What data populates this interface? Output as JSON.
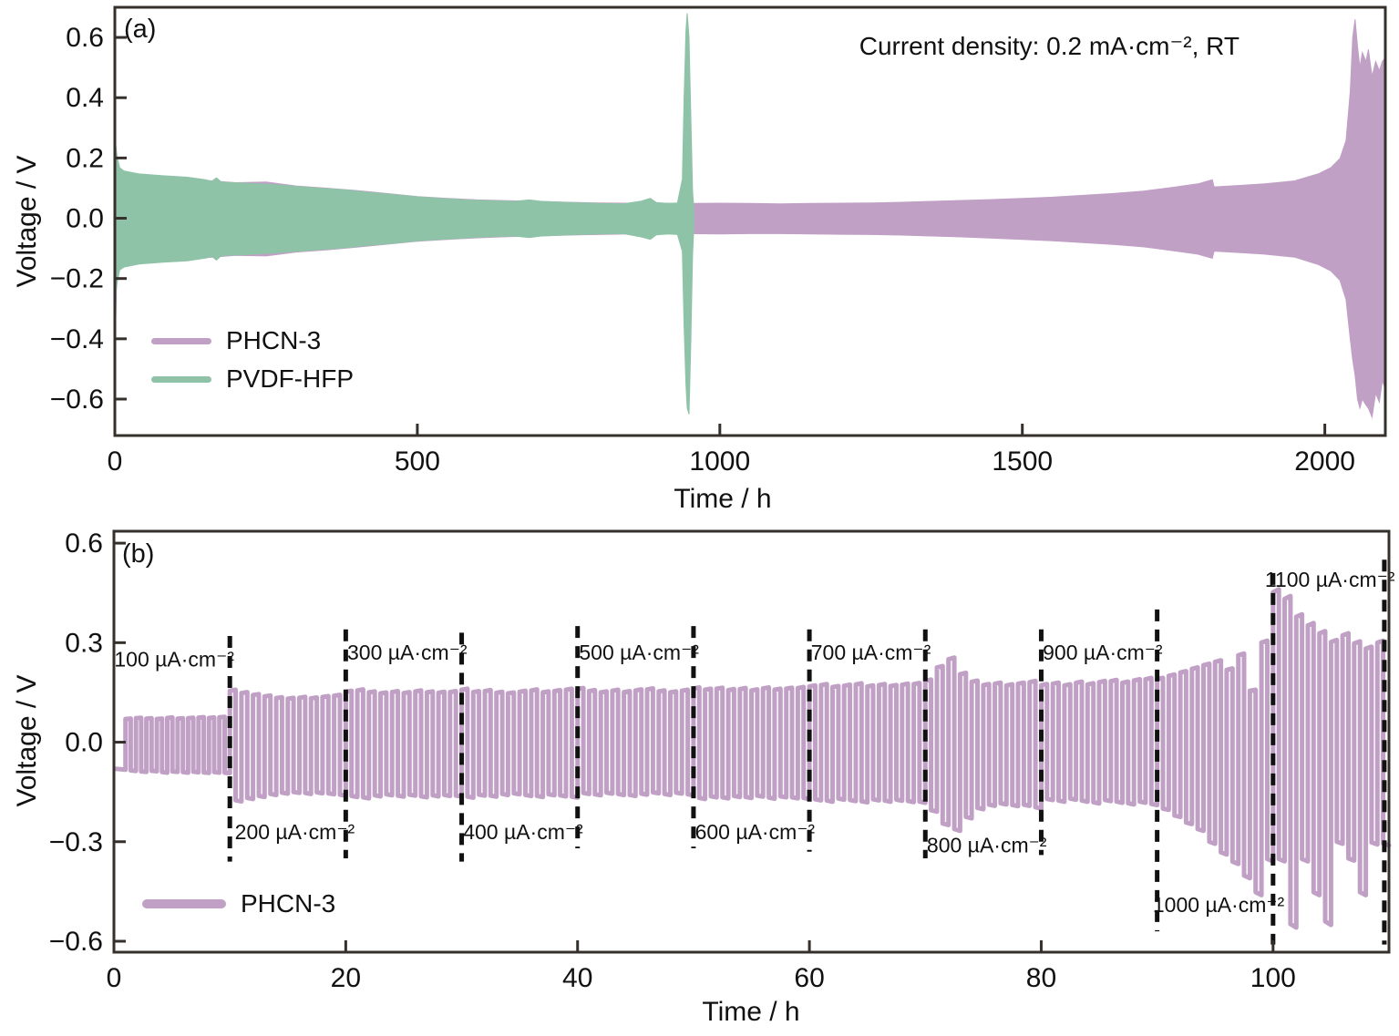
{
  "chart_data": [
    {
      "type": "area",
      "panel_label": "(a)",
      "annotation": "Current density: 0.2 mA·cm⁻², RT",
      "xlabel": "Time / h",
      "ylabel": "Voltage / V",
      "xlim": [
        0,
        2100
      ],
      "ylim": [
        -0.721,
        0.7
      ],
      "x_ticks": [
        0,
        500,
        1000,
        1500,
        2000
      ],
      "y_ticks": [
        0.6,
        0.4,
        0.2,
        0.0,
        -0.2,
        -0.4,
        -0.6
      ],
      "grid": false,
      "legend_position": "bottom-left",
      "series": [
        {
          "name": "PHCN-3",
          "color": "#c1a0c6",
          "envelope": [
            [
              0,
              0.04,
              -0.04
            ],
            [
              1,
              0.26,
              -0.38
            ],
            [
              3,
              0.18,
              -0.19
            ],
            [
              8,
              0.16,
              -0.165
            ],
            [
              15,
              0.15,
              -0.155
            ],
            [
              50,
              0.14,
              -0.145
            ],
            [
              100,
              0.132,
              -0.138
            ],
            [
              150,
              0.126,
              -0.131
            ],
            [
              200,
              0.118,
              -0.123
            ],
            [
              250,
              0.12,
              -0.125
            ],
            [
              300,
              0.107,
              -0.112
            ],
            [
              350,
              0.1,
              -0.105
            ],
            [
              400,
              0.092,
              -0.096
            ],
            [
              450,
              0.082,
              -0.086
            ],
            [
              500,
              0.072,
              -0.076
            ],
            [
              550,
              0.066,
              -0.07
            ],
            [
              600,
              0.061,
              -0.065
            ],
            [
              650,
              0.058,
              -0.061
            ],
            [
              700,
              0.056,
              -0.059
            ],
            [
              750,
              0.053,
              -0.056
            ],
            [
              800,
              0.051,
              -0.054
            ],
            [
              850,
              0.05,
              -0.052
            ],
            [
              900,
              0.05,
              -0.052
            ],
            [
              950,
              0.049,
              -0.051
            ],
            [
              1000,
              0.05,
              -0.052
            ],
            [
              1050,
              0.049,
              -0.051
            ],
            [
              1100,
              0.048,
              -0.051
            ],
            [
              1150,
              0.049,
              -0.052
            ],
            [
              1200,
              0.05,
              -0.053
            ],
            [
              1250,
              0.051,
              -0.054
            ],
            [
              1300,
              0.053,
              -0.056
            ],
            [
              1350,
              0.056,
              -0.059
            ],
            [
              1400,
              0.059,
              -0.062
            ],
            [
              1450,
              0.062,
              -0.066
            ],
            [
              1500,
              0.066,
              -0.07
            ],
            [
              1550,
              0.07,
              -0.075
            ],
            [
              1600,
              0.076,
              -0.081
            ],
            [
              1650,
              0.082,
              -0.087
            ],
            [
              1700,
              0.09,
              -0.095
            ],
            [
              1750,
              0.103,
              -0.108
            ],
            [
              1790,
              0.114,
              -0.119
            ],
            [
              1814,
              0.128,
              -0.133
            ],
            [
              1817,
              0.104,
              -0.109
            ],
            [
              1860,
              0.109,
              -0.114
            ],
            [
              1900,
              0.114,
              -0.119
            ],
            [
              1950,
              0.124,
              -0.129
            ],
            [
              1990,
              0.148,
              -0.154
            ],
            [
              2010,
              0.168,
              -0.175
            ],
            [
              2025,
              0.198,
              -0.206
            ],
            [
              2035,
              0.258,
              -0.27
            ],
            [
              2042,
              0.42,
              -0.4
            ],
            [
              2046,
              0.6,
              -0.47
            ],
            [
              2050,
              0.66,
              -0.52
            ],
            [
              2054,
              0.57,
              -0.6
            ],
            [
              2058,
              0.5,
              -0.63
            ],
            [
              2062,
              0.55,
              -0.6
            ],
            [
              2068,
              0.52,
              -0.62
            ],
            [
              2072,
              0.56,
              -0.63
            ],
            [
              2078,
              0.47,
              -0.66
            ],
            [
              2084,
              0.52,
              -0.58
            ],
            [
              2090,
              0.49,
              -0.61
            ],
            [
              2095,
              0.52,
              -0.54
            ],
            [
              2099,
              0.53,
              -0.56
            ]
          ]
        },
        {
          "name": "PVDF-HFP",
          "color": "#8fc3a8",
          "envelope": [
            [
              0,
              0.06,
              -0.06
            ],
            [
              1,
              0.25,
              -0.26
            ],
            [
              4,
              0.2,
              -0.21
            ],
            [
              8,
              0.168,
              -0.172
            ],
            [
              15,
              0.157,
              -0.162
            ],
            [
              40,
              0.147,
              -0.152
            ],
            [
              80,
              0.141,
              -0.146
            ],
            [
              120,
              0.136,
              -0.141
            ],
            [
              150,
              0.128,
              -0.132
            ],
            [
              160,
              0.122,
              -0.126
            ],
            [
              168,
              0.134,
              -0.139
            ],
            [
              176,
              0.12,
              -0.124
            ],
            [
              220,
              0.116,
              -0.12
            ],
            [
              260,
              0.112,
              -0.116
            ],
            [
              300,
              0.106,
              -0.11
            ],
            [
              340,
              0.1,
              -0.104
            ],
            [
              380,
              0.094,
              -0.098
            ],
            [
              420,
              0.086,
              -0.09
            ],
            [
              460,
              0.079,
              -0.083
            ],
            [
              500,
              0.071,
              -0.075
            ],
            [
              540,
              0.066,
              -0.07
            ],
            [
              580,
              0.061,
              -0.065
            ],
            [
              620,
              0.058,
              -0.061
            ],
            [
              660,
              0.056,
              -0.059
            ],
            [
              685,
              0.061,
              -0.064
            ],
            [
              705,
              0.056,
              -0.059
            ],
            [
              750,
              0.052,
              -0.055
            ],
            [
              800,
              0.049,
              -0.052
            ],
            [
              840,
              0.048,
              -0.051
            ],
            [
              870,
              0.057,
              -0.062
            ],
            [
              885,
              0.066,
              -0.07
            ],
            [
              895,
              0.052,
              -0.055
            ],
            [
              915,
              0.049,
              -0.052
            ],
            [
              930,
              0.051,
              -0.054
            ],
            [
              938,
              0.13,
              -0.11
            ],
            [
              941,
              0.4,
              -0.36
            ],
            [
              944,
              0.62,
              -0.55
            ],
            [
              946,
              0.68,
              -0.63
            ],
            [
              949,
              0.6,
              -0.65
            ],
            [
              952,
              0.35,
              -0.42
            ],
            [
              955,
              0.09,
              -0.12
            ],
            [
              957,
              0.03,
              -0.03
            ]
          ]
        }
      ]
    },
    {
      "type": "line",
      "panel_label": "(b)",
      "xlabel": "Time / h",
      "ylabel": "Voltage / V",
      "xlim": [
        0,
        110
      ],
      "ylim": [
        -0.633,
        0.636
      ],
      "x_ticks": [
        0,
        20,
        40,
        60,
        80,
        100
      ],
      "y_ticks": [
        0.6,
        0.3,
        0.0,
        -0.3,
        -0.6
      ],
      "grid": false,
      "legend_position": "bottom-left",
      "series": [
        {
          "name": "PHCN-3",
          "color": "#c1a0c6"
        }
      ],
      "lead_in": {
        "t_end": 1.0,
        "v": -0.08
      },
      "segments": [
        {
          "label": "100 µA·cm⁻²",
          "t_start": 0,
          "t_end": 10,
          "label_side": "above",
          "label_t": 5.2,
          "label_v": 0.25,
          "hi": [
            0.07,
            0.072,
            0.071,
            0.07,
            0.073,
            0.071,
            0.072,
            0.074,
            0.073,
            0.075
          ],
          "lo": [
            -0.085,
            -0.088,
            -0.086,
            -0.09,
            -0.088,
            -0.09,
            -0.089,
            -0.091,
            -0.09,
            -0.092
          ]
        },
        {
          "label": "200 µA·cm⁻²",
          "t_start": 10,
          "t_end": 20,
          "label_side": "below",
          "label_t": 15.6,
          "label_v": -0.27,
          "hi": [
            0.155,
            0.148,
            0.142,
            0.138,
            0.133,
            0.131,
            0.134,
            0.132,
            0.136,
            0.14
          ],
          "lo": [
            -0.175,
            -0.168,
            -0.162,
            -0.156,
            -0.152,
            -0.15,
            -0.153,
            -0.151,
            -0.154,
            -0.158
          ]
        },
        {
          "label": "300 µA·cm⁻²",
          "t_start": 20,
          "t_end": 30,
          "label_side": "above",
          "label_t": 25.3,
          "label_v": 0.27,
          "hi": [
            0.152,
            0.156,
            0.15,
            0.147,
            0.151,
            0.148,
            0.153,
            0.15,
            0.149,
            0.151
          ],
          "lo": [
            -0.162,
            -0.166,
            -0.16,
            -0.157,
            -0.161,
            -0.158,
            -0.163,
            -0.16,
            -0.159,
            -0.161
          ]
        },
        {
          "label": "400 µA·cm⁻²",
          "t_start": 30,
          "t_end": 40,
          "label_side": "below",
          "label_t": 35.3,
          "label_v": -0.27,
          "hi": [
            0.158,
            0.151,
            0.154,
            0.149,
            0.147,
            0.152,
            0.156,
            0.15,
            0.154,
            0.158
          ],
          "lo": [
            -0.164,
            -0.158,
            -0.161,
            -0.156,
            -0.154,
            -0.159,
            -0.162,
            -0.157,
            -0.16,
            -0.164
          ]
        },
        {
          "label": "500 µA·cm⁻²",
          "t_start": 40,
          "t_end": 50,
          "label_side": "above",
          "label_t": 45.3,
          "label_v": 0.27,
          "hi": [
            0.16,
            0.154,
            0.15,
            0.155,
            0.151,
            0.156,
            0.159,
            0.153,
            0.15,
            0.155
          ],
          "lo": [
            -0.153,
            -0.157,
            -0.152,
            -0.156,
            -0.159,
            -0.155,
            -0.151,
            -0.156,
            -0.152,
            -0.157
          ]
        },
        {
          "label": "600 µA·cm⁻²",
          "t_start": 50,
          "t_end": 60,
          "label_side": "below",
          "label_t": 55.3,
          "label_v": -0.27,
          "hi": [
            0.162,
            0.158,
            0.161,
            0.157,
            0.16,
            0.156,
            0.162,
            0.158,
            0.161,
            0.163
          ],
          "lo": [
            -0.168,
            -0.163,
            -0.166,
            -0.162,
            -0.165,
            -0.161,
            -0.167,
            -0.163,
            -0.166,
            -0.168
          ]
        },
        {
          "label": "700 µA·cm⁻²",
          "t_start": 60,
          "t_end": 70,
          "label_side": "above",
          "label_t": 65.3,
          "label_v": 0.27,
          "hi": [
            0.168,
            0.172,
            0.166,
            0.17,
            0.174,
            0.168,
            0.172,
            0.169,
            0.173,
            0.175
          ],
          "lo": [
            -0.172,
            -0.176,
            -0.17,
            -0.174,
            -0.178,
            -0.172,
            -0.176,
            -0.173,
            -0.177,
            -0.179
          ]
        },
        {
          "label": "800 µA·cm⁻²",
          "t_start": 70,
          "t_end": 80,
          "label_side": "below",
          "label_t": 75.3,
          "label_v": -0.31,
          "hi": [
            0.185,
            0.225,
            0.25,
            0.205,
            0.182,
            0.172,
            0.176,
            0.171,
            0.176,
            0.181
          ],
          "lo": [
            -0.205,
            -0.245,
            -0.262,
            -0.225,
            -0.198,
            -0.188,
            -0.184,
            -0.189,
            -0.188,
            -0.196
          ]
        },
        {
          "label": "900 µA·cm⁻²",
          "t_start": 80,
          "t_end": 90,
          "label_side": "above",
          "label_t": 85.3,
          "label_v": 0.27,
          "hi": [
            0.172,
            0.176,
            0.171,
            0.179,
            0.174,
            0.181,
            0.184,
            0.179,
            0.186,
            0.19
          ],
          "lo": [
            -0.171,
            -0.176,
            -0.17,
            -0.176,
            -0.181,
            -0.174,
            -0.179,
            -0.184,
            -0.179,
            -0.186
          ]
        },
        {
          "label": "1000 µA·cm⁻²",
          "t_start": 90,
          "t_end": 100,
          "label_side": "below",
          "label_t": 95.3,
          "label_v": -0.49,
          "hi": [
            0.19,
            0.2,
            0.21,
            0.221,
            0.232,
            0.242,
            0.218,
            0.262,
            0.155,
            0.3
          ],
          "lo": [
            -0.2,
            -0.221,
            -0.242,
            -0.262,
            -0.3,
            -0.332,
            -0.36,
            -0.402,
            -0.452,
            -0.352
          ]
        },
        {
          "label": "1100 µA·cm⁻²",
          "t_start": 100,
          "t_end": 110,
          "label_side": "above",
          "label_t": 104.9,
          "label_v": 0.49,
          "hi": [
            0.452,
            0.432,
            0.378,
            0.352,
            0.328,
            0.302,
            0.322,
            0.298,
            0.282,
            0.3
          ],
          "lo": [
            -0.352,
            -0.548,
            -0.352,
            -0.452,
            -0.54,
            -0.3,
            -0.35,
            -0.452,
            -0.302,
            -0.305
          ]
        }
      ],
      "dashed_lines": [
        {
          "t": 10,
          "v_top": 0.32,
          "v_bottom": -0.36
        },
        {
          "t": 20,
          "v_top": 0.34,
          "v_bottom": -0.35
        },
        {
          "t": 30,
          "v_top": 0.33,
          "v_bottom": -0.36
        },
        {
          "t": 40,
          "v_top": 0.35,
          "v_bottom": -0.32
        },
        {
          "t": 50,
          "v_top": 0.35,
          "v_bottom": -0.32
        },
        {
          "t": 60,
          "v_top": 0.34,
          "v_bottom": -0.33
        },
        {
          "t": 70,
          "v_top": 0.34,
          "v_bottom": -0.35
        },
        {
          "t": 80,
          "v_top": 0.34,
          "v_bottom": -0.34
        },
        {
          "t": 90,
          "v_top": 0.4,
          "v_bottom": -0.57
        },
        {
          "t": 100,
          "v_top": 0.51,
          "v_bottom": -0.61
        },
        {
          "t": 109.6,
          "v_top": 0.55,
          "v_bottom": -0.61
        }
      ]
    }
  ],
  "style": {
    "axis_color": "#35302b",
    "dash_color": "#111111",
    "text_color": "#111111"
  }
}
